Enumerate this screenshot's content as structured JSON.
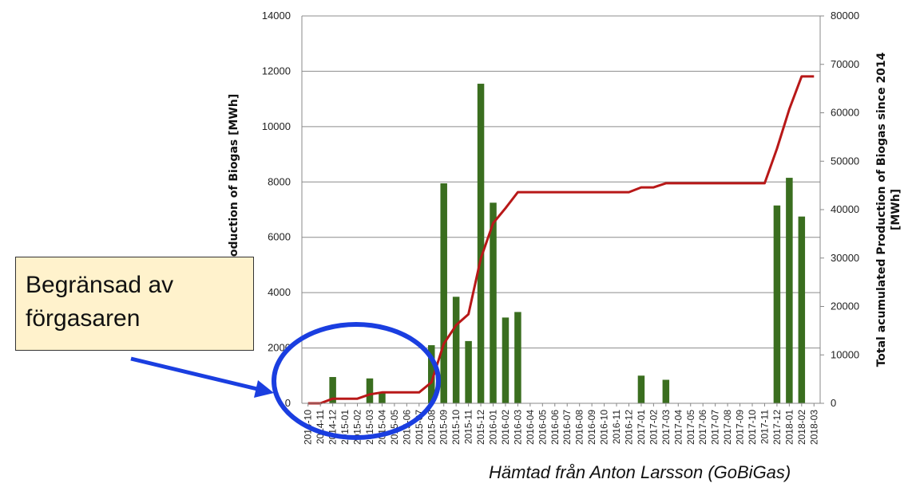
{
  "chart_data": {
    "type": "bar",
    "ylabel_left": "Monthly Production of Biogas [MWh]",
    "ylabel_right": "Total acumulated Production of Biogas since 2014 [MWh]",
    "ylim_left": [
      0,
      14000
    ],
    "ylim_right": [
      0,
      80000
    ],
    "yticks_left": [
      "0",
      "2000",
      "4000",
      "6000",
      "8000",
      "10000",
      "12000",
      "14000"
    ],
    "yticks_right": [
      "0",
      "10000",
      "20000",
      "30000",
      "40000",
      "50000",
      "60000",
      "70000",
      "80000"
    ],
    "grid": true,
    "categories": [
      "2014-10",
      "2014-11",
      "2014-12",
      "2015-01",
      "2015-02",
      "2015-03",
      "2015-04",
      "2015-05",
      "2015-06",
      "2015-07",
      "2015-08",
      "2015-09",
      "2015-10",
      "2015-11",
      "2015-12",
      "2016-01",
      "2016-02",
      "2016-03",
      "2016-04",
      "2016-05",
      "2016-06",
      "2016-07",
      "2016-08",
      "2016-09",
      "2016-10",
      "2016-11",
      "2016-12",
      "2017-01",
      "2017-02",
      "2017-03",
      "2017-04",
      "2017-05",
      "2017-06",
      "2017-07",
      "2017-08",
      "2017-09",
      "2017-10",
      "2017-11",
      "2017-12",
      "2018-01",
      "2018-02",
      "2018-03"
    ],
    "x_tick_labels": [
      "2014-10",
      "2014-11",
      "2014-12",
      "2015-01",
      "2015-02",
      "2015-03",
      "2015-04",
      "2015-05",
      "2015-06",
      "2015-07",
      "2015-08",
      "2015-09",
      "2015-10",
      "2015-11",
      "2015-12",
      "2016-01",
      "2016-02",
      "2016-03",
      "2016-04",
      "2016-05",
      "2016-06",
      "2016-07",
      "2016-08",
      "2016-09",
      "2016-10",
      "2016-11",
      "2016-12",
      "2017-01",
      "2017-02",
      "2017-03",
      "2017-04",
      "2017-05",
      "2017-06",
      "2017-07",
      "2017-08",
      "2017-09",
      "2017-10",
      "2017-11",
      "2017-12",
      "2018-01",
      "2018-02",
      "2018-03"
    ],
    "series": [
      {
        "kind": "bar",
        "axis": "left",
        "color": "#3a6e1f",
        "values": [
          0,
          0,
          950,
          0,
          0,
          900,
          400,
          0,
          0,
          0,
          2100,
          7950,
          3850,
          2250,
          11550,
          7250,
          3100,
          3300,
          0,
          0,
          0,
          0,
          0,
          0,
          0,
          0,
          0,
          1000,
          0,
          850,
          0,
          0,
          0,
          0,
          0,
          0,
          0,
          0,
          7150,
          8150,
          6750,
          0
        ]
      },
      {
        "kind": "line",
        "axis": "right",
        "color": "#b81818",
        "values": [
          0,
          0,
          950,
          950,
          950,
          1850,
          2250,
          2250,
          2250,
          2250,
          4350,
          12300,
          16150,
          18400,
          29950,
          37200,
          40300,
          43600,
          43600,
          43600,
          43600,
          43600,
          43600,
          43600,
          43600,
          43600,
          43600,
          44600,
          44600,
          45450,
          45450,
          45450,
          45450,
          45450,
          45450,
          45450,
          45450,
          45450,
          52600,
          60750,
          67500,
          67500
        ]
      }
    ]
  },
  "callout": {
    "text": "Begränsad av\nförgasaren"
  },
  "source_note": "Hämtad från Anton Larsson (GoBiGas)",
  "colors": {
    "callout_bg": "#fff2cc",
    "annotation": "#1a3ee0"
  }
}
